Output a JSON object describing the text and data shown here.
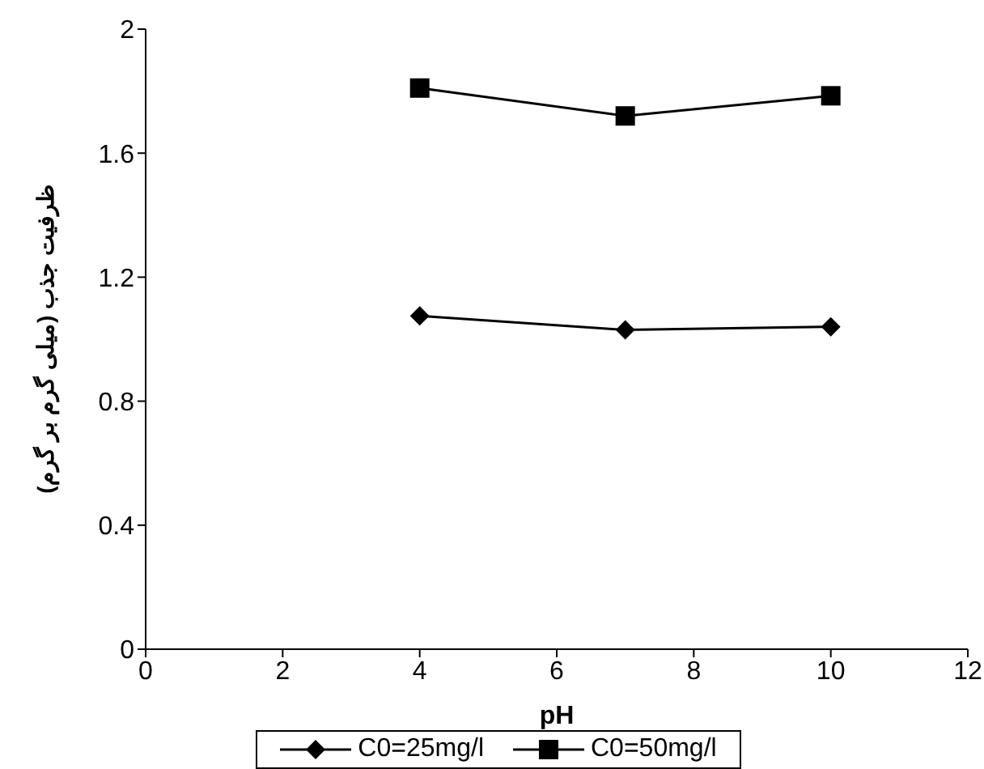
{
  "chart_data": {
    "type": "line",
    "xlabel": "pH",
    "ylabel": "ظرفیت جذب (میلی گرم بر گرم)",
    "x": [
      4,
      7,
      10
    ],
    "series": [
      {
        "name": "C0=25mg/l",
        "color": "#000000",
        "values": [
          1.075,
          1.03,
          1.04
        ],
        "marker": "diamond"
      },
      {
        "name": "C0=50mg/l",
        "color": "#000000",
        "values": [
          1.81,
          1.72,
          1.785
        ],
        "marker": "square"
      }
    ],
    "xlim": [
      0,
      12
    ],
    "xticks": [
      0,
      2,
      4,
      6,
      8,
      10,
      12
    ],
    "ylim": [
      0,
      2
    ],
    "yticks": [
      0,
      0.4,
      0.8,
      1.2,
      1.6,
      2
    ],
    "grid": false,
    "legend": "bottom",
    "line_style": "solid"
  }
}
